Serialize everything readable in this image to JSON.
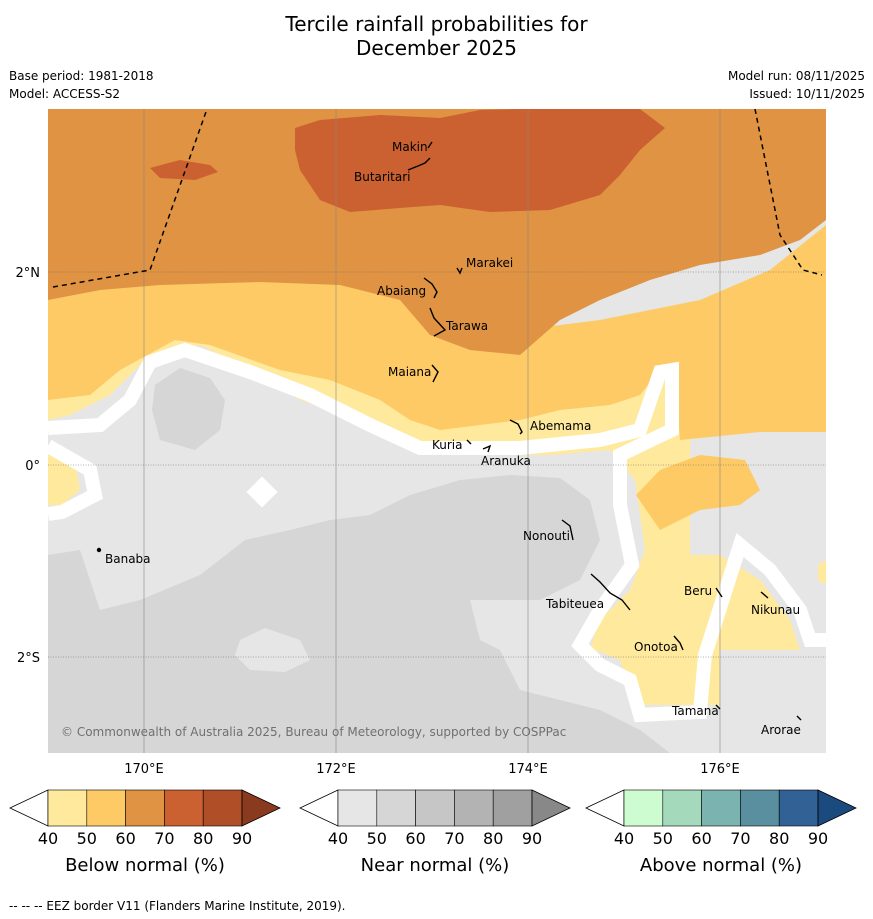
{
  "title": {
    "line1": "Tercile rainfall probabilities for",
    "line2": "December 2025"
  },
  "meta": {
    "base_period": "Base period: 1981-2018",
    "model": "Model: ACCESS-S2",
    "model_run": "Model run: 08/11/2025",
    "issued": "Issued: 10/11/2025"
  },
  "map": {
    "lon_labels": [
      "170°E",
      "172°E",
      "174°E",
      "176°E"
    ],
    "lat_labels": [
      "2°N",
      "0°",
      "2°S"
    ],
    "copyright": "© Commonwealth of Australia 2025, Bureau of Meteorology, supported by COSPPac",
    "places": [
      "Makin",
      "Butaritari",
      "Marakei",
      "Abaiang",
      "Tarawa",
      "Maiana",
      "Abemama",
      "Kuria",
      "Aranuka",
      "Nonouti",
      "Banaba",
      "Beru",
      "Nikunau",
      "Tabiteuea",
      "Onotoa",
      "Tamana",
      "Arorae"
    ]
  },
  "colorbars": [
    {
      "label": "Below normal (%)",
      "colors": [
        "#fee99d",
        "#fdca65",
        "#df9343",
        "#cb6130",
        "#b04e27"
      ],
      "extend": "#8a3a1f",
      "ticks": [
        "40",
        "50",
        "60",
        "70",
        "80",
        "90"
      ]
    },
    {
      "label": "Near normal (%)",
      "colors": [
        "#e6e6e6",
        "#d6d6d6",
        "#c6c6c6",
        "#b3b3b3",
        "#a0a0a0"
      ],
      "extend": "#888888",
      "ticks": [
        "40",
        "50",
        "60",
        "70",
        "80",
        "90"
      ]
    },
    {
      "label": "Above normal (%)",
      "colors": [
        "#cdfcd1",
        "#a5d9bc",
        "#7ab3b0",
        "#5a8fa0",
        "#326195"
      ],
      "extend": "#1b4a7f",
      "ticks": [
        "40",
        "50",
        "60",
        "70",
        "80",
        "90"
      ]
    }
  ],
  "footer": "--  --  -- EEZ border V11 (Flanders Marine Institute, 2019)."
}
